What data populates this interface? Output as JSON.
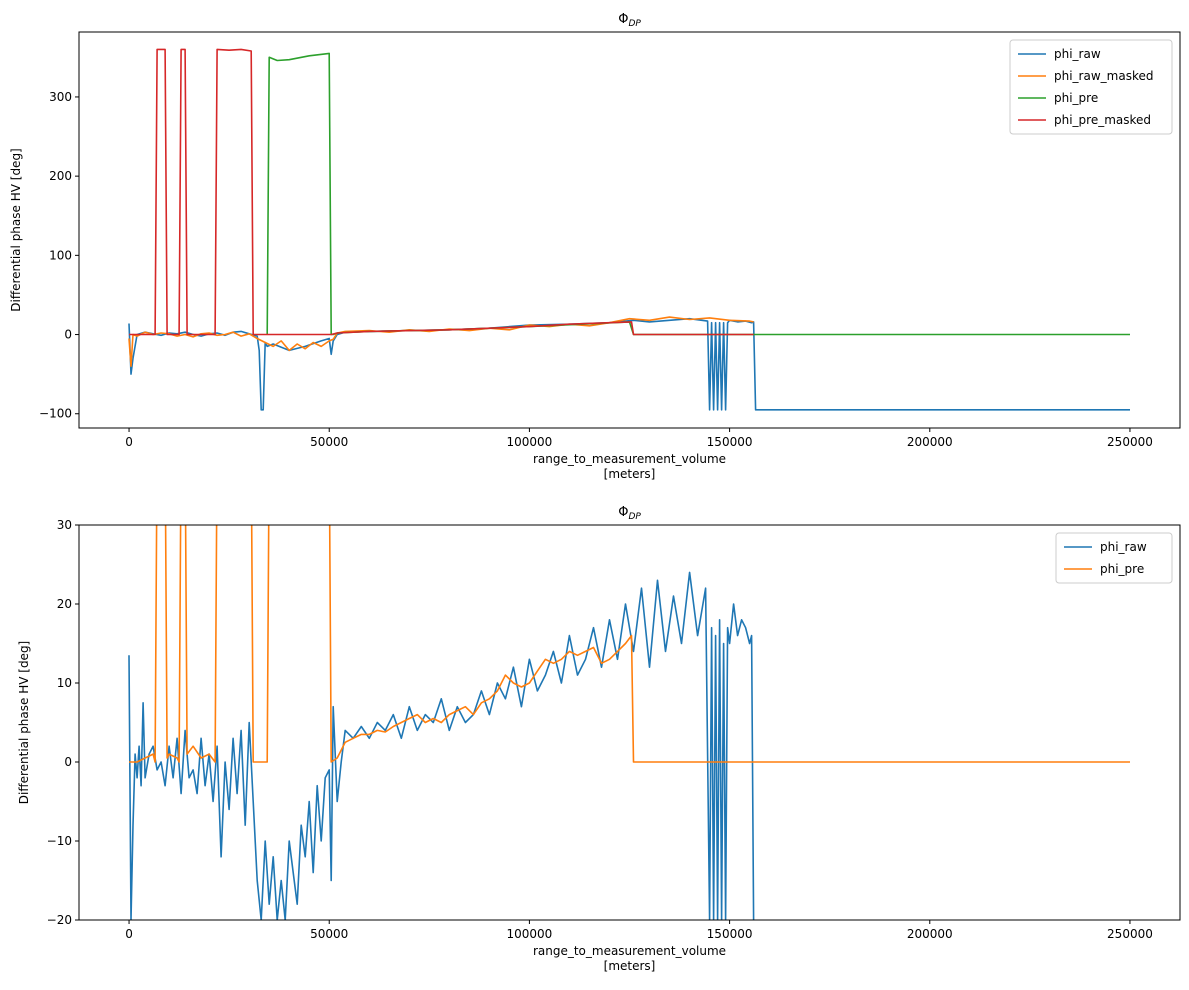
{
  "chart_data": [
    {
      "type": "line",
      "title_main": "Φ",
      "title_sub": "DP",
      "xlabel": "range_to_measurement_volume",
      "xlabel_units": "[meters]",
      "ylabel": "Differential phase HV [deg]",
      "xlim": [
        -12500,
        262500
      ],
      "ylim": [
        -118,
        382
      ],
      "xticks": [
        0,
        50000,
        100000,
        150000,
        200000,
        250000
      ],
      "xtick_labels": [
        "0",
        "50000",
        "100000",
        "150000",
        "200000",
        "250000"
      ],
      "yticks": [
        -100,
        0,
        100,
        200,
        300
      ],
      "ytick_labels": [
        "−100",
        "0",
        "100",
        "200",
        "300"
      ],
      "legend_position": "upper-right",
      "legend": [
        "phi_raw",
        "phi_raw_masked",
        "phi_pre",
        "phi_pre_masked"
      ],
      "series": [
        {
          "name": "phi_raw",
          "color": "#1f77b4",
          "x": [
            0,
            500,
            1000,
            2000,
            4000,
            6000,
            8000,
            10000,
            12000,
            14000,
            16000,
            18000,
            20000,
            22000,
            24000,
            26000,
            28000,
            30000,
            32000,
            32500,
            33000,
            33500,
            34000,
            34500,
            36000,
            40000,
            44000,
            48000,
            50000,
            50500,
            51000,
            52000,
            54000,
            60000,
            70000,
            80000,
            90000,
            100000,
            110000,
            120000,
            126000,
            130000,
            140000,
            144500,
            145000,
            145500,
            146000,
            146500,
            147000,
            147500,
            148000,
            148500,
            149000,
            149500,
            150000,
            152000,
            154000,
            155500,
            156000,
            156500,
            160000,
            200000,
            250000
          ],
          "y": [
            14,
            -50,
            -30,
            0,
            3,
            1,
            -1,
            2,
            1,
            3,
            0,
            -2,
            1,
            2,
            -1,
            3,
            4,
            1,
            -2,
            -20,
            -95,
            -95,
            -10,
            -15,
            -12,
            -20,
            -15,
            -8,
            -5,
            -25,
            -8,
            0,
            3,
            4,
            5,
            6,
            8,
            12,
            13,
            15,
            18,
            16,
            20,
            17,
            -95,
            15,
            -95,
            15,
            -95,
            15,
            -95,
            15,
            -95,
            15,
            18,
            16,
            17,
            15,
            16,
            -95,
            -95,
            -95,
            -95
          ]
        },
        {
          "name": "phi_raw_masked",
          "color": "#ff7f0e",
          "x": [
            0,
            500,
            1000,
            2000,
            4000,
            6000,
            8000,
            10000,
            12000,
            14000,
            16000,
            18000,
            20000,
            22000,
            24000,
            26000,
            28000,
            30000,
            32000,
            34000,
            36000,
            38000,
            40000,
            42000,
            44000,
            46000,
            48000,
            50000,
            51000,
            52000,
            54000,
            60000,
            65000,
            70000,
            75000,
            80000,
            85000,
            90000,
            95000,
            100000,
            105000,
            110000,
            115000,
            120000,
            125000,
            130000,
            135000,
            140000,
            145000,
            150000,
            155000,
            156000
          ],
          "y": [
            -5,
            -40,
            0,
            -2,
            3,
            0,
            2,
            1,
            -2,
            0,
            -3,
            1,
            2,
            -1,
            0,
            3,
            -2,
            1,
            -5,
            -10,
            -15,
            -8,
            -20,
            -12,
            -18,
            -10,
            -15,
            -8,
            -6,
            2,
            4,
            5,
            3,
            6,
            4,
            7,
            5,
            8,
            6,
            12,
            10,
            13,
            11,
            15,
            20,
            18,
            22,
            19,
            21,
            18,
            17,
            16
          ]
        },
        {
          "name": "phi_pre",
          "color": "#2ca02c",
          "x": [
            34500,
            35000,
            37000,
            40000,
            45000,
            50000,
            50500,
            51000,
            52000,
            60000,
            80000,
            100000,
            125000,
            126000,
            150000,
            200000,
            250000
          ],
          "y": [
            0,
            350,
            346,
            347,
            352,
            355,
            0,
            0,
            2,
            4,
            6,
            10,
            16,
            0,
            0,
            0,
            0
          ]
        },
        {
          "name": "phi_pre_masked",
          "color": "#d62728",
          "x": [
            0,
            6500,
            7000,
            9000,
            9500,
            12500,
            13000,
            14000,
            14500,
            21500,
            22000,
            25000,
            28000,
            30500,
            31000,
            34500,
            35000,
            50000,
            50500,
            52000,
            60000,
            80000,
            100000,
            110000,
            120000,
            125500,
            126000,
            150000,
            156000
          ],
          "y": [
            0,
            0,
            360,
            360,
            0,
            0,
            360,
            360,
            0,
            0,
            360,
            359,
            360,
            358,
            0,
            0,
            0,
            0,
            0,
            2,
            4,
            6,
            10,
            13,
            15,
            16,
            0,
            0,
            0
          ]
        }
      ]
    },
    {
      "type": "line",
      "title_main": "Φ",
      "title_sub": "DP",
      "xlabel": "range_to_measurement_volume",
      "xlabel_units": "[meters]",
      "ylabel": "Differential phase HV [deg]",
      "xlim": [
        -12500,
        262500
      ],
      "ylim": [
        -20,
        30
      ],
      "xticks": [
        0,
        50000,
        100000,
        150000,
        200000,
        250000
      ],
      "xtick_labels": [
        "0",
        "50000",
        "100000",
        "150000",
        "200000",
        "250000"
      ],
      "yticks": [
        -20,
        -10,
        0,
        10,
        20,
        30
      ],
      "ytick_labels": [
        "−20",
        "−10",
        "0",
        "10",
        "20",
        "30"
      ],
      "legend_position": "upper-right",
      "legend": [
        "phi_raw",
        "phi_pre"
      ],
      "series": [
        {
          "name": "phi_raw",
          "color": "#1f77b4",
          "x": [
            0,
            500,
            1000,
            1500,
            2000,
            2500,
            3000,
            3500,
            4000,
            5000,
            6000,
            7000,
            8000,
            9000,
            10000,
            11000,
            12000,
            13000,
            14000,
            15000,
            16000,
            17000,
            18000,
            19000,
            20000,
            21000,
            22000,
            23000,
            24000,
            25000,
            26000,
            27000,
            28000,
            29000,
            30000,
            31000,
            32000,
            33000,
            34000,
            35000,
            36000,
            37000,
            38000,
            39000,
            40000,
            41000,
            42000,
            43000,
            44000,
            45000,
            46000,
            47000,
            48000,
            49000,
            50000,
            50500,
            51000,
            52000,
            53000,
            54000,
            56000,
            58000,
            60000,
            62000,
            64000,
            66000,
            68000,
            70000,
            72000,
            74000,
            76000,
            78000,
            80000,
            82000,
            84000,
            86000,
            88000,
            90000,
            92000,
            94000,
            96000,
            98000,
            100000,
            102000,
            104000,
            106000,
            108000,
            110000,
            112000,
            114000,
            116000,
            118000,
            120000,
            122000,
            124000,
            126000,
            128000,
            130000,
            132000,
            134000,
            136000,
            138000,
            140000,
            142000,
            144000,
            145000,
            145500,
            146000,
            146500,
            147000,
            147500,
            148000,
            148500,
            149000,
            149500,
            150000,
            151000,
            152000,
            153000,
            154000,
            155000,
            155500,
            156000
          ],
          "y": [
            13.5,
            -20,
            -8,
            1,
            -2,
            2,
            -3,
            7.5,
            -2,
            1,
            2,
            -1,
            0,
            -3,
            2,
            -2,
            3,
            -4,
            4,
            -2,
            -1,
            -4,
            3,
            -3,
            1,
            -5,
            2,
            -12,
            0,
            -6,
            3,
            -4,
            4,
            -8,
            5,
            -5,
            -15,
            -20,
            -10,
            -18,
            -12,
            -20,
            -15,
            -20,
            -10,
            -14,
            -18,
            -8,
            -12,
            -5,
            -14,
            -3,
            -10,
            -2,
            -1,
            -15,
            7,
            -5,
            0,
            4,
            3,
            4.5,
            3,
            5,
            4,
            6,
            3,
            7,
            4,
            6,
            5,
            8,
            4,
            7,
            5,
            6,
            9,
            6,
            10,
            8,
            12,
            7,
            13,
            9,
            11,
            14,
            10,
            16,
            11,
            13,
            17,
            12,
            18,
            13,
            20,
            14,
            22,
            12,
            23,
            14,
            21,
            15,
            24,
            16,
            22,
            -20,
            17,
            -20,
            16,
            -20,
            18,
            -20,
            15,
            -20,
            17,
            15,
            20,
            16,
            18,
            17,
            15,
            16,
            -20
          ]
        },
        {
          "name": "phi_pre",
          "color": "#ff7f0e",
          "x": [
            0,
            2000,
            4000,
            6000,
            6500,
            7000,
            9000,
            9500,
            10000,
            12000,
            12500,
            13000,
            14000,
            14500,
            16000,
            18000,
            20000,
            21500,
            22000,
            30500,
            31000,
            34500,
            35000,
            50000,
            50500,
            52000,
            54000,
            56000,
            58000,
            60000,
            62000,
            64000,
            66000,
            68000,
            70000,
            72000,
            74000,
            76000,
            78000,
            80000,
            82000,
            84000,
            86000,
            88000,
            90000,
            92000,
            94000,
            96000,
            98000,
            100000,
            102000,
            104000,
            106000,
            108000,
            110000,
            112000,
            114000,
            116000,
            118000,
            120000,
            122000,
            124000,
            125500,
            126000,
            150000,
            200000,
            250000
          ],
          "y": [
            0,
            0,
            0.5,
            1,
            0,
            40,
            40,
            0.5,
            1,
            0.5,
            0,
            40,
            40,
            1,
            2,
            0.5,
            1,
            0,
            40,
            40,
            0,
            0,
            40,
            40,
            0,
            0.5,
            2.5,
            3,
            3.5,
            3.5,
            4,
            3.8,
            4.5,
            5,
            5.5,
            6,
            5,
            5.5,
            5,
            6,
            6.5,
            7,
            6,
            7.5,
            8,
            9,
            11,
            10,
            9.5,
            10,
            11.5,
            13,
            12.5,
            13,
            14,
            13.5,
            14,
            14.5,
            12.5,
            13,
            14,
            15,
            16,
            0,
            0,
            0,
            0
          ]
        }
      ]
    }
  ]
}
